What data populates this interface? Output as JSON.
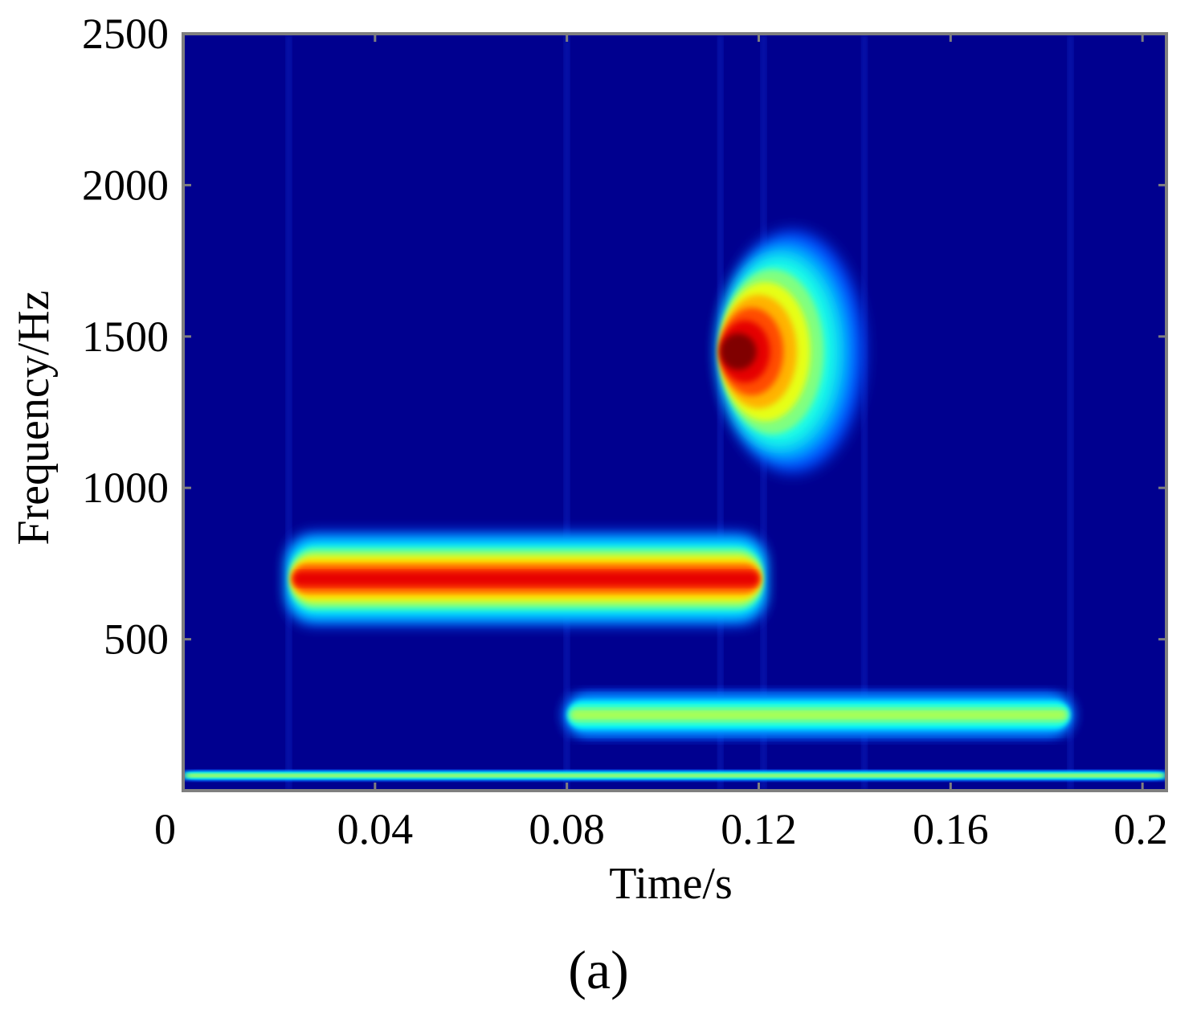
{
  "chart_data": {
    "type": "heatmap",
    "panel_label": "(a)",
    "xlabel": "Time/s",
    "ylabel": "Frequency/Hz",
    "xlim": [
      0,
      0.205
    ],
    "ylim": [
      0,
      2500
    ],
    "x_ticks": [
      {
        "value": 0,
        "label": "0"
      },
      {
        "value": 0.04,
        "label": "0.04"
      },
      {
        "value": 0.08,
        "label": "0.08"
      },
      {
        "value": 0.12,
        "label": "0.12"
      },
      {
        "value": 0.16,
        "label": "0.16"
      },
      {
        "value": 0.2,
        "label": "0.2"
      }
    ],
    "y_ticks": [
      {
        "value": 500,
        "label": "500"
      },
      {
        "value": 1000,
        "label": "1000"
      },
      {
        "value": 1500,
        "label": "1500"
      },
      {
        "value": 2000,
        "label": "2000"
      },
      {
        "value": 2500,
        "label": "2500"
      }
    ],
    "colormap": "jet",
    "background_color": "#00008f",
    "components": [
      {
        "name": "",
        "t_start": 0.022,
        "t_end": 0.121,
        "frequency": 700,
        "bandwidth": 150,
        "intensity": 0.9
      },
      {
        "name": "",
        "t_start": 0.08,
        "t_end": 0.185,
        "frequency": 250,
        "bandwidth": 70,
        "intensity": 0.55
      },
      {
        "name": "",
        "t_start": 0.112,
        "t_end": 0.142,
        "frequency": 1450,
        "bandwidth": 400,
        "intensity": 1.0
      },
      {
        "name": "",
        "t_start": 0,
        "t_end": 0.205,
        "frequency": 50,
        "bandwidth": 15,
        "intensity": 0.6
      }
    ],
    "transients": [
      0.022,
      0.08,
      0.112,
      0.121,
      0.142,
      0.185
    ]
  }
}
